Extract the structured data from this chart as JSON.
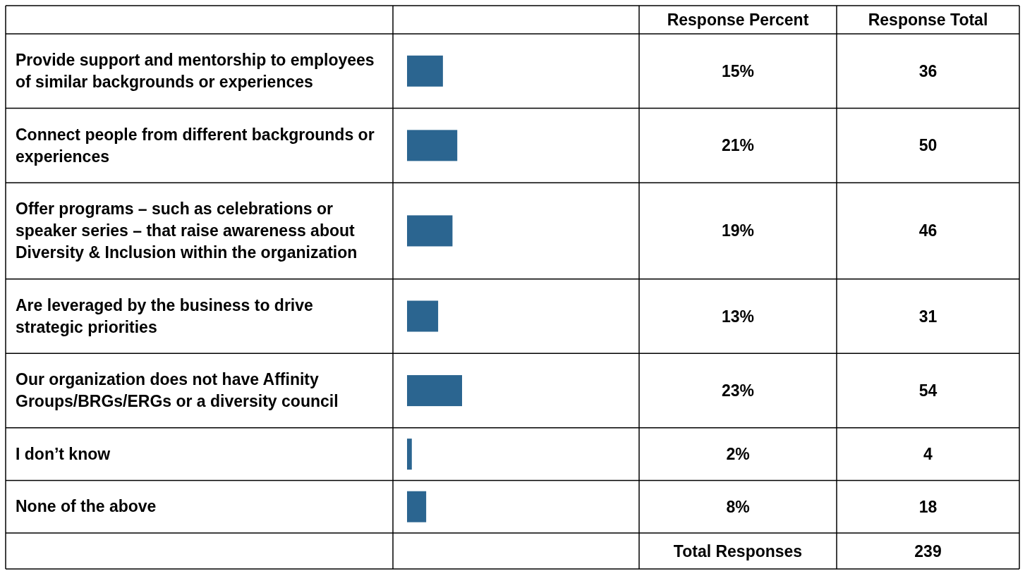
{
  "chart_data": {
    "type": "bar",
    "orientation": "horizontal",
    "categories": [
      "Provide support and mentorship to employees of similar backgrounds or experiences",
      "Connect people from different backgrounds or experiences",
      "Offer programs – such as celebrations or speaker series – that raise awareness about Diversity & Inclusion within the organization",
      "Are leveraged by the business to drive strategic priorities",
      "Our organization does not have Affinity Groups/BRGs/ERGs or a diversity council",
      "I don’t know",
      "None of the above"
    ],
    "values": [
      15,
      21,
      19,
      13,
      23,
      2,
      8
    ],
    "value_labels": [
      "15%",
      "21%",
      "19%",
      "13%",
      "23%",
      "2%",
      "8%"
    ],
    "color": "#2b6590",
    "annotations": [
      "Response Percent",
      "Response Total",
      "36",
      "50",
      "46",
      "31",
      "54",
      "4",
      "18",
      "Total Responses",
      "239"
    ]
  }
}
